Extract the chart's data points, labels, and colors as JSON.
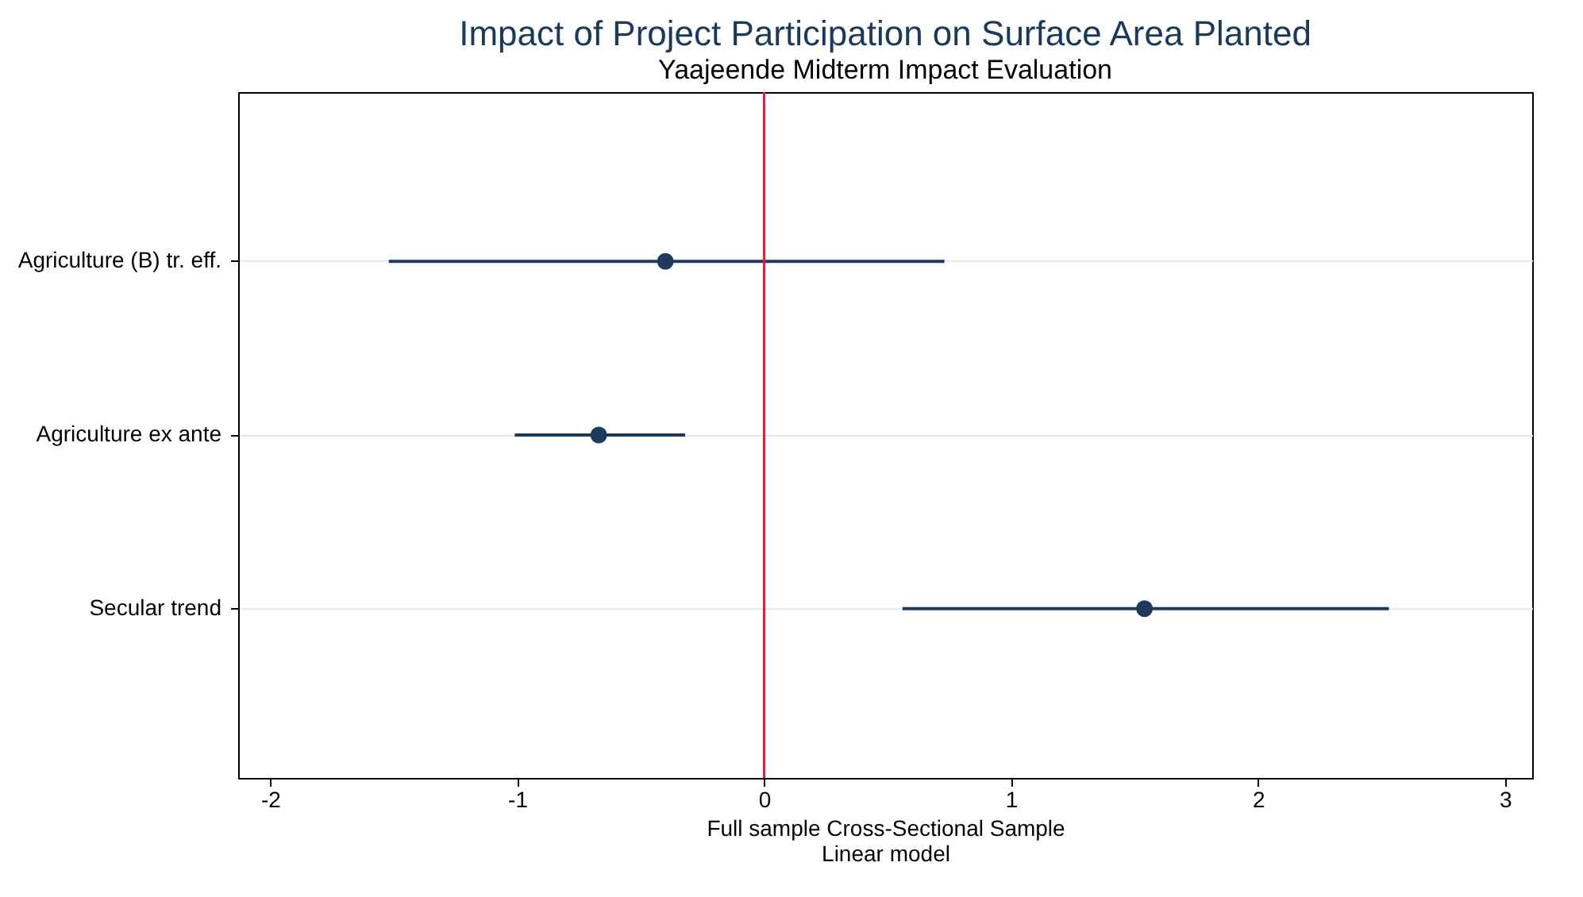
{
  "chart_data": {
    "type": "scatter",
    "title": "Impact of Project Participation on Surface Area Planted",
    "subtitle": "Yaajeende Midterm Impact Evaluation",
    "xlabel": "Full sample Cross-Sectional Sample\nLinear model",
    "orientation": "horizontal",
    "categories": [
      "Agriculture (B) tr. eff.",
      "Agriculture ex ante",
      "Secular trend"
    ],
    "series": [
      {
        "color": "#1f3a5f",
        "values": [
          -0.4,
          -0.67,
          1.54
        ],
        "errors": [
          [
            -1.52,
            0.73
          ],
          [
            -1.01,
            -0.32
          ],
          [
            0.56,
            2.53
          ]
        ]
      }
    ],
    "xlim": [
      -2.13,
      3.11
    ],
    "xticks": [
      -2,
      -1,
      0,
      1,
      2,
      3
    ],
    "grid": "y",
    "marker": "circle",
    "ref_lines": [
      {
        "axis": "x",
        "value": 0,
        "color": "#e8173a"
      }
    ]
  }
}
